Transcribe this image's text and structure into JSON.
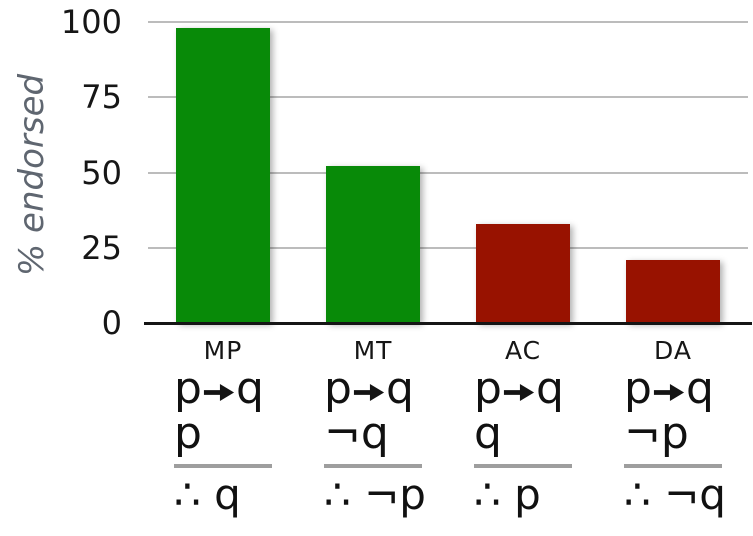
{
  "chart_data": {
    "type": "bar",
    "title": "",
    "xlabel": "",
    "ylabel": "% endorsed",
    "categories": [
      "MP",
      "MT",
      "AC",
      "DA"
    ],
    "values": [
      98,
      52,
      33,
      21
    ],
    "bar_colors": [
      "#088a08",
      "#088a08",
      "#981200",
      "#981200"
    ],
    "ylim": [
      0,
      100
    ],
    "yticks": [
      "0",
      "25",
      "50",
      "75",
      "100"
    ],
    "grid": "horizontal gridlines at 25/50/75/100",
    "legend": "none"
  },
  "colors": {
    "endorsed_green": "#088a08",
    "fallacy_red": "#981200",
    "axis_label_gray": "#5f6670",
    "gridline_gray": "#bcbcbc",
    "inference_line_gray": "#9e9e9e"
  },
  "columns": [
    {
      "label": "MP",
      "premise1_left": "p",
      "premise1_right": "q",
      "premise2": "p",
      "conclusion": "∴ q"
    },
    {
      "label": "MT",
      "premise1_left": "p",
      "premise1_right": "q",
      "premise2": "¬q",
      "conclusion": "∴ ¬p"
    },
    {
      "label": "AC",
      "premise1_left": "p",
      "premise1_right": "q",
      "premise2": "q",
      "conclusion": "∴ p"
    },
    {
      "label": "DA",
      "premise1_left": "p",
      "premise1_right": "q",
      "premise2": "¬p",
      "conclusion": "∴ ¬q"
    }
  ],
  "icons": {
    "premise_arrow": "arrow-right-icon"
  }
}
